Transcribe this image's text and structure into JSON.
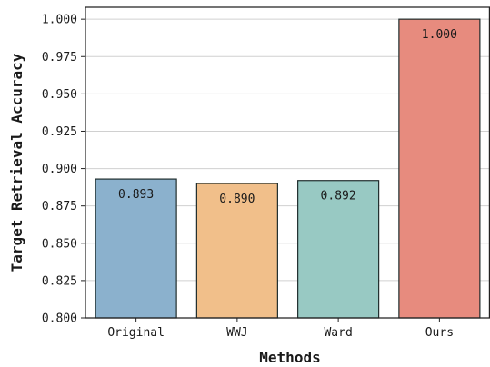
{
  "chart_data": {
    "type": "bar",
    "title": "",
    "xlabel": "Methods",
    "ylabel": "Target Retrieval Accuracy",
    "categories": [
      "Original",
      "WWJ",
      "Ward",
      "Ours"
    ],
    "values": [
      0.893,
      0.89,
      0.892,
      1.0
    ],
    "data_labels": [
      "0.893",
      "0.890",
      "0.892",
      "1.000"
    ],
    "colors": [
      "#8bb1cd",
      "#f1bf8a",
      "#98c9c3",
      "#e78b7e"
    ],
    "ylim": [
      0.8,
      1.008
    ],
    "yticks": [
      0.8,
      0.825,
      0.85,
      0.875,
      0.9,
      0.925,
      0.95,
      0.975,
      1.0
    ],
    "ytick_labels": [
      "0.800",
      "0.825",
      "0.850",
      "0.875",
      "0.900",
      "0.925",
      "0.950",
      "0.975",
      "1.000"
    ],
    "grid": "y",
    "legend": "none"
  }
}
